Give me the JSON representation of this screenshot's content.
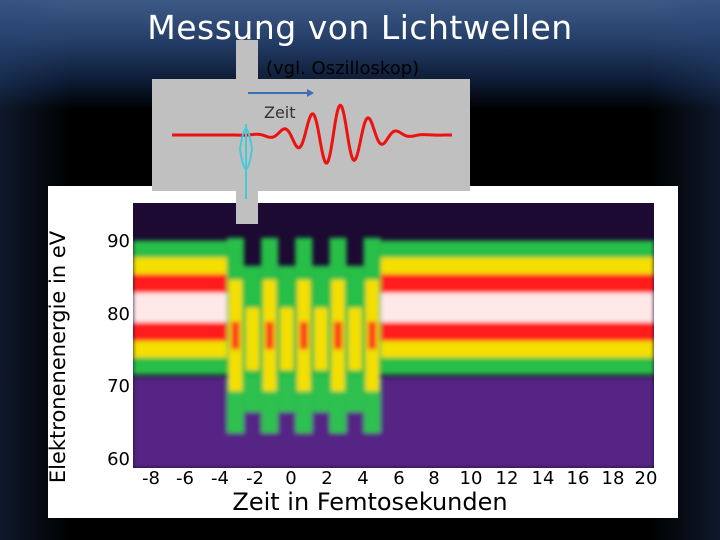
{
  "title": "Messung von Lichtwellen",
  "inset": {
    "subtitle": "(vgl. Oszilloskop)",
    "axis_label": "Zeit"
  },
  "chart_data": {
    "type": "heatmap",
    "xlabel": "Zeit in Femtosekunden",
    "ylabel": "Elektronenenergie in eV",
    "x_ticks": [
      "-8",
      "-6",
      "-4",
      "-2",
      "0",
      "2",
      "4",
      "6",
      "8",
      "10",
      "12",
      "14",
      "16",
      "18",
      "20"
    ],
    "y_ticks": [
      "60",
      "70",
      "80",
      "90"
    ],
    "xlim": [
      -9.5,
      21
    ],
    "ylim": [
      59,
      97
    ],
    "band_center_eV": 82,
    "band_width_eV": 6,
    "streak_region_fs": [
      -4,
      5
    ],
    "colors": {
      "background": "#1c0a33",
      "low": "#6a2fa0",
      "mid": "#2ad34a",
      "high": "#ffe000",
      "peak": "#ff1a1a",
      "max": "#ffffff"
    }
  }
}
